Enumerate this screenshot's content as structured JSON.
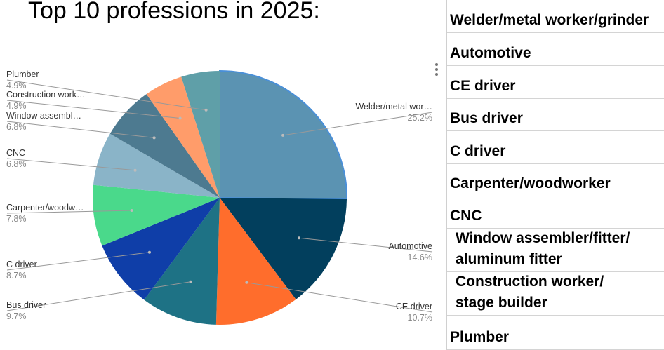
{
  "title": "Top 10 professions in 2025:",
  "chart_data": {
    "type": "pie",
    "slices": [
      {
        "label": "Welder/metal wor…",
        "value": 25.2,
        "pct_label": "25.2%",
        "color": "#5b93b2"
      },
      {
        "label": "Automotive",
        "value": 14.6,
        "pct_label": "14.6%",
        "color": "#023f5d"
      },
      {
        "label": "CE driver",
        "value": 10.7,
        "pct_label": "10.7%",
        "color": "#ff6d2c"
      },
      {
        "label": "Bus driver",
        "value": 9.7,
        "pct_label": "9.7%",
        "color": "#1e7285"
      },
      {
        "label": "C driver",
        "value": 8.7,
        "pct_label": "8.7%",
        "color": "#0f3ea8"
      },
      {
        "label": "Carpenter/woodw…",
        "value": 7.8,
        "pct_label": "7.8%",
        "color": "#4ad98b"
      },
      {
        "label": "CNC",
        "value": 6.8,
        "pct_label": "6.8%",
        "color": "#8ab4c8"
      },
      {
        "label": "Window assembl…",
        "value": 6.8,
        "pct_label": "6.8%",
        "color": "#4d7a90"
      },
      {
        "label": "Construction work…",
        "value": 4.9,
        "pct_label": "4.9%",
        "color": "#ff9c6a"
      },
      {
        "label": "Plumber",
        "value": 4.9,
        "pct_label": "4.9%",
        "color": "#5f9fa8"
      }
    ]
  },
  "table": {
    "rows": [
      {
        "lines": [
          "Welder/metal worker/grinder"
        ]
      },
      {
        "lines": [
          "Automotive"
        ]
      },
      {
        "lines": [
          "CE driver"
        ]
      },
      {
        "lines": [
          "Bus driver"
        ]
      },
      {
        "lines": [
          "C driver"
        ]
      },
      {
        "lines": [
          "Carpenter/woodworker"
        ]
      },
      {
        "lines": [
          "CNC"
        ]
      },
      {
        "lines": [
          "Window assembler/fitter/",
          "aluminum fitter"
        ]
      },
      {
        "lines": [
          "Construction worker/",
          "stage builder"
        ]
      },
      {
        "lines": [
          "Plumber"
        ]
      }
    ]
  }
}
